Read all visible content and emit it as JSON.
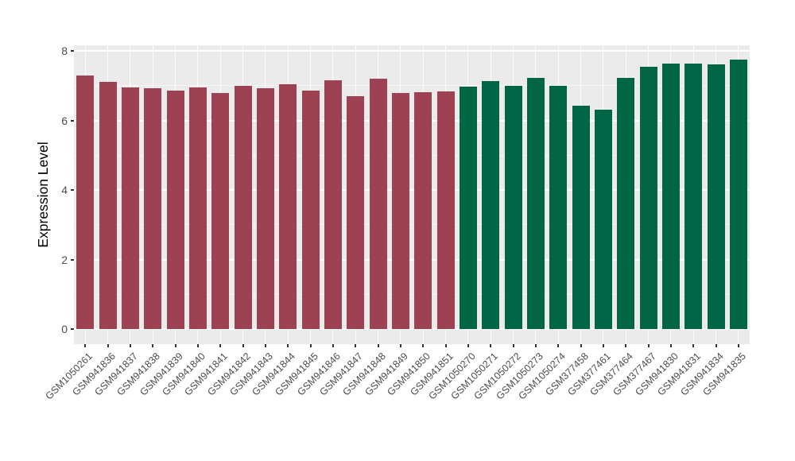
{
  "chart_data": {
    "type": "bar",
    "title": "",
    "xlabel": "",
    "ylabel": "Expression Level",
    "ylim": [
      0,
      8
    ],
    "yticks": [
      0,
      2,
      4,
      6,
      8
    ],
    "yticks_minor": [
      1,
      3,
      5,
      7
    ],
    "grid": "on",
    "legend": "none",
    "panel_bg": "#EBEBEB",
    "grid_color": "#FFFFFF",
    "tick_color": "#333333",
    "tick_label_color": "#4D4D4D",
    "categories": [
      "GSM1050261",
      "GSM941836",
      "GSM941837",
      "GSM941838",
      "GSM941839",
      "GSM941840",
      "GSM941841",
      "GSM941842",
      "GSM941843",
      "GSM941844",
      "GSM941845",
      "GSM941846",
      "GSM941847",
      "GSM941848",
      "GSM941849",
      "GSM941850",
      "GSM941851",
      "GSM1050270",
      "GSM1050271",
      "GSM1050272",
      "GSM1050273",
      "GSM1050274",
      "GSM377458",
      "GSM377461",
      "GSM377464",
      "GSM377467",
      "GSM941830",
      "GSM941831",
      "GSM941834",
      "GSM941835"
    ],
    "values": [
      7.3,
      7.11,
      6.95,
      6.93,
      6.86,
      6.95,
      6.78,
      6.99,
      6.93,
      7.05,
      6.85,
      7.15,
      6.7,
      7.2,
      6.8,
      6.81,
      6.83,
      6.97,
      7.14,
      7.0,
      7.23,
      7.0,
      6.42,
      6.31,
      7.22,
      7.54,
      7.64,
      7.64,
      7.62,
      7.75
    ],
    "groups": [
      "group1",
      "group1",
      "group1",
      "group1",
      "group1",
      "group1",
      "group1",
      "group1",
      "group1",
      "group1",
      "group1",
      "group1",
      "group1",
      "group1",
      "group1",
      "group1",
      "group1",
      "group2",
      "group2",
      "group2",
      "group2",
      "group2",
      "group2",
      "group2",
      "group2",
      "group2",
      "group2",
      "group2",
      "group2",
      "group2"
    ],
    "group_colors": {
      "group1": "#9C4252",
      "group2": "#026646"
    }
  }
}
